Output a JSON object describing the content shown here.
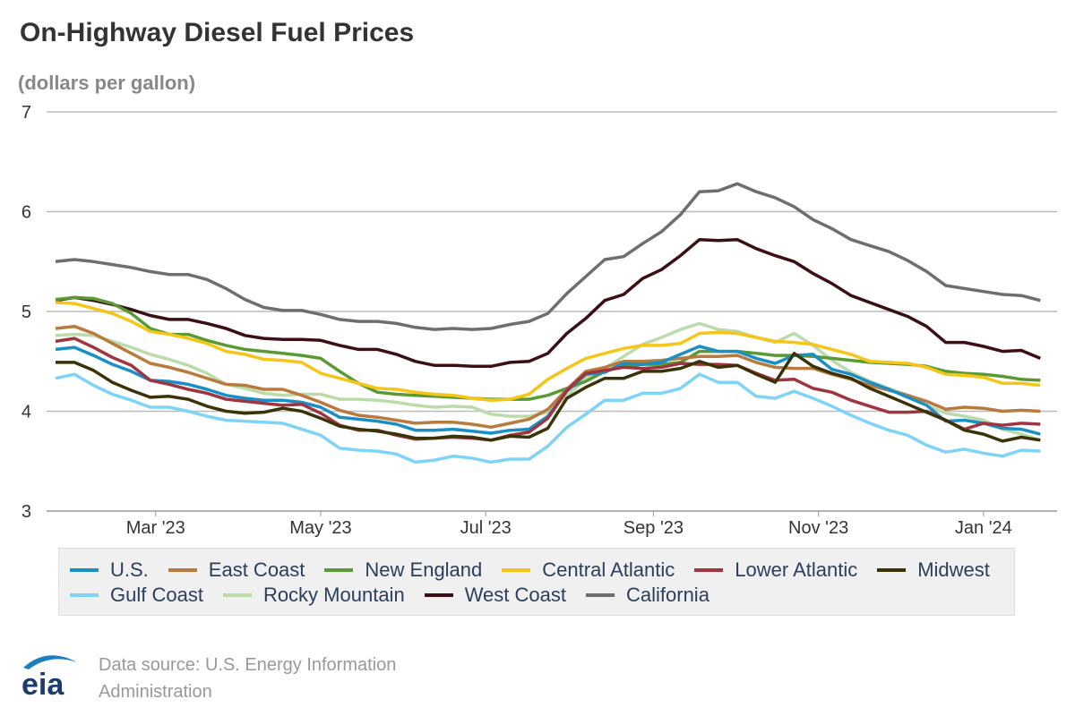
{
  "title": "On-Highway Diesel Fuel Prices",
  "subtitle": "(dollars per gallon)",
  "source": "Data source: U.S. Energy Information Administration",
  "logo_text": "eia",
  "chart_data": {
    "type": "line",
    "title": "On-Highway Diesel Fuel Prices",
    "ylabel": "(dollars per gallon)",
    "ylim": [
      3,
      7
    ],
    "yticks": [
      "3",
      "4",
      "5",
      "6",
      "7"
    ],
    "xticks": [
      {
        "label": "Mar '23",
        "date": "2023-03-01"
      },
      {
        "label": "May '23",
        "date": "2023-05-01"
      },
      {
        "label": "Jul '23",
        "date": "2023-07-01"
      },
      {
        "label": "Sep '23",
        "date": "2023-09-01"
      },
      {
        "label": "Nov '23",
        "date": "2023-11-01"
      },
      {
        "label": "Jan '24",
        "date": "2024-01-01"
      }
    ],
    "x_start": "2023-01-23",
    "x_frequency": "weekly",
    "grid": true,
    "legend": "bottom",
    "series": [
      {
        "name": "U.S.",
        "color": "#1a8fc6",
        "values": [
          4.62,
          4.64,
          4.56,
          4.47,
          4.4,
          4.31,
          4.3,
          4.27,
          4.22,
          4.16,
          4.13,
          4.11,
          4.11,
          4.09,
          4.04,
          3.94,
          3.92,
          3.9,
          3.87,
          3.81,
          3.81,
          3.82,
          3.8,
          3.78,
          3.81,
          3.82,
          3.95,
          4.2,
          4.37,
          4.39,
          4.48,
          4.47,
          4.49,
          4.57,
          4.65,
          4.6,
          4.6,
          4.53,
          4.48,
          4.56,
          4.57,
          4.42,
          4.37,
          4.29,
          4.22,
          4.14,
          4.06,
          3.9,
          3.91,
          3.88,
          3.83,
          3.82,
          3.77
        ]
      },
      {
        "name": "East Coast",
        "color": "#b87a3d",
        "values": [
          4.83,
          4.85,
          4.78,
          4.68,
          4.58,
          4.48,
          4.44,
          4.39,
          4.33,
          4.27,
          4.26,
          4.22,
          4.22,
          4.16,
          4.09,
          4.01,
          3.96,
          3.94,
          3.91,
          3.88,
          3.89,
          3.89,
          3.87,
          3.84,
          3.88,
          3.92,
          4.02,
          4.22,
          4.4,
          4.44,
          4.5,
          4.5,
          4.51,
          4.53,
          4.55,
          4.55,
          4.56,
          4.49,
          4.44,
          4.43,
          4.43,
          4.37,
          4.32,
          4.26,
          4.21,
          4.16,
          4.1,
          4.02,
          4.04,
          4.03,
          4.0,
          4.01,
          4.0
        ]
      },
      {
        "name": "New England",
        "color": "#5a9a35",
        "values": [
          5.12,
          5.14,
          5.13,
          5.08,
          4.98,
          4.83,
          4.77,
          4.77,
          4.71,
          4.66,
          4.62,
          4.6,
          4.58,
          4.56,
          4.53,
          4.4,
          4.28,
          4.19,
          4.17,
          4.16,
          4.15,
          4.14,
          4.13,
          4.12,
          4.12,
          4.12,
          4.16,
          4.23,
          4.3,
          4.4,
          4.45,
          4.47,
          4.47,
          4.49,
          4.6,
          4.6,
          4.6,
          4.58,
          4.56,
          4.56,
          4.55,
          4.53,
          4.51,
          4.49,
          4.48,
          4.47,
          4.45,
          4.4,
          4.38,
          4.37,
          4.35,
          4.32,
          4.31
        ]
      },
      {
        "name": "Central Atlantic",
        "color": "#f5c518",
        "values": [
          5.09,
          5.08,
          5.03,
          4.98,
          4.9,
          4.8,
          4.77,
          4.73,
          4.68,
          4.6,
          4.57,
          4.52,
          4.51,
          4.49,
          4.38,
          4.33,
          4.28,
          4.23,
          4.22,
          4.19,
          4.17,
          4.16,
          4.13,
          4.11,
          4.12,
          4.17,
          4.32,
          4.43,
          4.53,
          4.58,
          4.63,
          4.66,
          4.66,
          4.68,
          4.78,
          4.79,
          4.78,
          4.74,
          4.7,
          4.69,
          4.67,
          4.62,
          4.57,
          4.5,
          4.49,
          4.48,
          4.44,
          4.37,
          4.36,
          4.34,
          4.28,
          4.28,
          4.26
        ]
      },
      {
        "name": "Lower Atlantic",
        "color": "#a0353f",
        "values": [
          4.7,
          4.73,
          4.64,
          4.54,
          4.46,
          4.31,
          4.27,
          4.22,
          4.18,
          4.12,
          4.1,
          4.08,
          4.06,
          4.07,
          3.98,
          3.86,
          3.81,
          3.81,
          3.76,
          3.72,
          3.73,
          3.74,
          3.73,
          3.71,
          3.76,
          3.79,
          3.93,
          4.21,
          4.38,
          4.41,
          4.44,
          4.43,
          4.44,
          4.48,
          4.47,
          4.47,
          4.46,
          4.38,
          4.31,
          4.32,
          4.23,
          4.19,
          4.11,
          4.05,
          3.99,
          3.99,
          4.0,
          3.91,
          3.82,
          3.88,
          3.86,
          3.88,
          3.87
        ]
      },
      {
        "name": "Midwest",
        "color": "#3a3308",
        "values": [
          4.49,
          4.49,
          4.41,
          4.29,
          4.21,
          4.14,
          4.15,
          4.12,
          4.05,
          4.0,
          3.98,
          3.99,
          4.03,
          4.0,
          3.93,
          3.85,
          3.82,
          3.8,
          3.77,
          3.73,
          3.73,
          3.75,
          3.74,
          3.71,
          3.75,
          3.74,
          3.83,
          4.13,
          4.24,
          4.33,
          4.33,
          4.4,
          4.4,
          4.43,
          4.5,
          4.44,
          4.46,
          4.37,
          4.29,
          4.58,
          4.45,
          4.38,
          4.33,
          4.23,
          4.15,
          4.07,
          3.99,
          3.91,
          3.81,
          3.77,
          3.7,
          3.74,
          3.71
        ]
      },
      {
        "name": "Gulf Coast",
        "color": "#7fd3f7",
        "values": [
          4.33,
          4.37,
          4.26,
          4.17,
          4.11,
          4.04,
          4.04,
          4.0,
          3.95,
          3.91,
          3.9,
          3.89,
          3.88,
          3.82,
          3.76,
          3.63,
          3.61,
          3.6,
          3.57,
          3.49,
          3.51,
          3.55,
          3.53,
          3.49,
          3.52,
          3.52,
          3.65,
          3.84,
          3.97,
          4.11,
          4.11,
          4.18,
          4.18,
          4.23,
          4.37,
          4.29,
          4.29,
          4.15,
          4.13,
          4.2,
          4.13,
          4.05,
          3.96,
          3.88,
          3.81,
          3.76,
          3.66,
          3.59,
          3.62,
          3.58,
          3.55,
          3.61,
          3.6
        ]
      },
      {
        "name": "Rocky Mountain",
        "color": "#bcdbaa",
        "values": [
          4.76,
          4.77,
          4.76,
          4.7,
          4.64,
          4.57,
          4.52,
          4.46,
          4.38,
          4.27,
          4.23,
          4.18,
          4.16,
          4.17,
          4.17,
          4.12,
          4.12,
          4.11,
          4.09,
          4.06,
          4.04,
          4.05,
          4.04,
          3.97,
          3.95,
          3.95,
          3.99,
          4.15,
          4.33,
          4.43,
          4.55,
          4.67,
          4.74,
          4.82,
          4.88,
          4.82,
          4.8,
          4.74,
          4.69,
          4.78,
          4.66,
          4.51,
          4.39,
          4.3,
          4.23,
          4.16,
          4.06,
          3.98,
          3.95,
          3.91,
          3.82,
          3.77,
          3.71
        ]
      },
      {
        "name": "West Coast",
        "color": "#3b0f14",
        "values": [
          5.11,
          5.14,
          5.11,
          5.07,
          5.02,
          4.96,
          4.92,
          4.92,
          4.88,
          4.83,
          4.76,
          4.73,
          4.72,
          4.72,
          4.71,
          4.66,
          4.62,
          4.62,
          4.57,
          4.5,
          4.46,
          4.46,
          4.45,
          4.45,
          4.49,
          4.5,
          4.58,
          4.78,
          4.93,
          5.11,
          5.17,
          5.33,
          5.42,
          5.56,
          5.72,
          5.71,
          5.72,
          5.63,
          5.56,
          5.5,
          5.38,
          5.28,
          5.16,
          5.09,
          5.02,
          4.95,
          4.85,
          4.69,
          4.69,
          4.65,
          4.6,
          4.61,
          4.53
        ]
      },
      {
        "name": "California",
        "color": "#6e6e6e",
        "values": [
          5.5,
          5.52,
          5.5,
          5.47,
          5.44,
          5.4,
          5.37,
          5.37,
          5.32,
          5.23,
          5.12,
          5.04,
          5.01,
          5.01,
          4.97,
          4.92,
          4.9,
          4.9,
          4.88,
          4.84,
          4.82,
          4.83,
          4.82,
          4.83,
          4.87,
          4.9,
          4.98,
          5.18,
          5.35,
          5.52,
          5.55,
          5.68,
          5.8,
          5.97,
          6.2,
          6.21,
          6.28,
          6.2,
          6.14,
          6.05,
          5.92,
          5.83,
          5.72,
          5.66,
          5.6,
          5.51,
          5.4,
          5.26,
          5.23,
          5.2,
          5.17,
          5.16,
          5.11
        ]
      }
    ]
  }
}
